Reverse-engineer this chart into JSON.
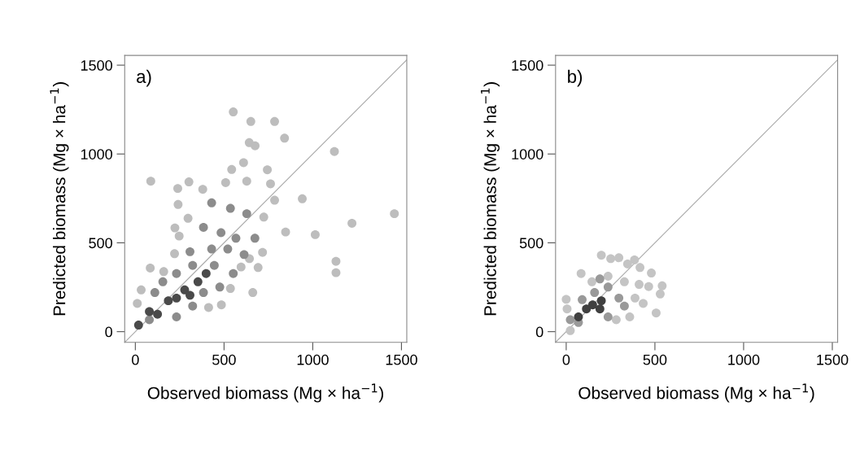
{
  "chart_data": [
    {
      "type": "scatter",
      "xlabel": "Observed biomass (Mg × ha$^{−1}$)",
      "ylabel": "Predicted biomass (Mg × ha$^{−1}$)",
      "annotations": [
        "a)"
      ],
      "xlim": [
        -60,
        1530
      ],
      "ylim": [
        -60,
        1555
      ],
      "xticks": [
        0,
        500,
        1000,
        1500
      ],
      "yticks": [
        0,
        500,
        1000,
        1500
      ],
      "marker": "circle",
      "grid": false,
      "legend": false,
      "series": [
        {
          "type": "line",
          "marker": "none",
          "color": "#a8a8a8",
          "x": [
            -60,
            1530
          ],
          "values": [
            -60,
            1530
          ]
        },
        {
          "color": "#bdbdbd",
          "x": [
            552,
            651,
            785,
            841,
            1122,
            87,
            1460,
            1221,
            1014,
            941,
            847,
            1131,
            1131,
            662,
            642,
            675,
            239,
            302,
            380,
            241,
            509,
            610,
            543,
            744,
            762,
            628,
            223,
            297,
            247,
            84,
            221,
            485,
            413,
            11,
            33,
            785,
            724,
            717,
            692,
            596,
            536,
            643,
            160
          ],
          "values": [
            1237,
            1183,
            1183,
            1089,
            1014,
            847,
            664,
            610,
            546,
            748,
            561,
            396,
            332,
            220,
            1064,
            1046,
            806,
            843,
            801,
            716,
            839,
            951,
            913,
            911,
            832,
            847,
            584,
            638,
            538,
            358,
            439,
            151,
            136,
            159,
            235,
            740,
            645,
            446,
            361,
            364,
            243,
            411,
            338
          ]
        },
        {
          "color": "#8c8c8c",
          "x": [
            430,
            536,
            628,
            384,
            483,
            567,
            674,
            308,
            430,
            521,
            613,
            323,
            445,
            552,
            232,
            155,
            384,
            476,
            110,
            323,
            232,
            79
          ],
          "values": [
            725,
            694,
            664,
            587,
            557,
            526,
            526,
            450,
            465,
            465,
            434,
            373,
            373,
            327,
            327,
            281,
            220,
            251,
            220,
            144,
            83,
            67
          ]
        },
        {
          "color": "#4a4a4a",
          "x": [
            278,
            232,
            186,
            79,
            308,
            18,
            125,
            353,
            399
          ],
          "values": [
            235,
            189,
            174,
            113,
            205,
            37,
            98,
            281,
            327
          ]
        }
      ]
    },
    {
      "type": "scatter",
      "xlabel": "Observed biomass (Mg × ha$^{−1}$)",
      "ylabel": "Predicted biomass (Mg × ha$^{−1}$)",
      "annotations": [
        "b)"
      ],
      "xlim": [
        -60,
        1530
      ],
      "ylim": [
        -60,
        1555
      ],
      "xticks": [
        0,
        500,
        1000,
        1500
      ],
      "yticks": [
        0,
        500,
        1000,
        1500
      ],
      "marker": "circle",
      "grid": false,
      "legend": false,
      "series": [
        {
          "type": "line",
          "marker": "none",
          "color": "#a8a8a8",
          "x": [
            -60,
            1530
          ],
          "values": [
            -60,
            1530
          ]
        },
        {
          "color": "#c4c4c4",
          "x": [
            198,
            251,
            297,
            385,
            416,
            346,
            480,
            541,
            530,
            507,
            465,
            411,
            0,
            5,
            84,
            145,
            358,
            434,
            282,
            23,
            236,
            328,
            388
          ],
          "values": [
            430,
            411,
            416,
            404,
            361,
            381,
            330,
            258,
            212,
            105,
            254,
            266,
            182,
            128,
            327,
            281,
            83,
            159,
            67,
            6,
            312,
            281,
            189
          ]
        },
        {
          "color": "#999999",
          "x": [
            160,
            236,
            297,
            90,
            236,
            69,
            190,
            328,
            23
          ],
          "values": [
            220,
            251,
            189,
            180,
            83,
            52,
            297,
            144,
            67
          ]
        },
        {
          "color": "#404040",
          "x": [
            149,
            198,
            114,
            69,
            190
          ],
          "values": [
            151,
            174,
            128,
            83,
            128
          ]
        }
      ]
    }
  ]
}
